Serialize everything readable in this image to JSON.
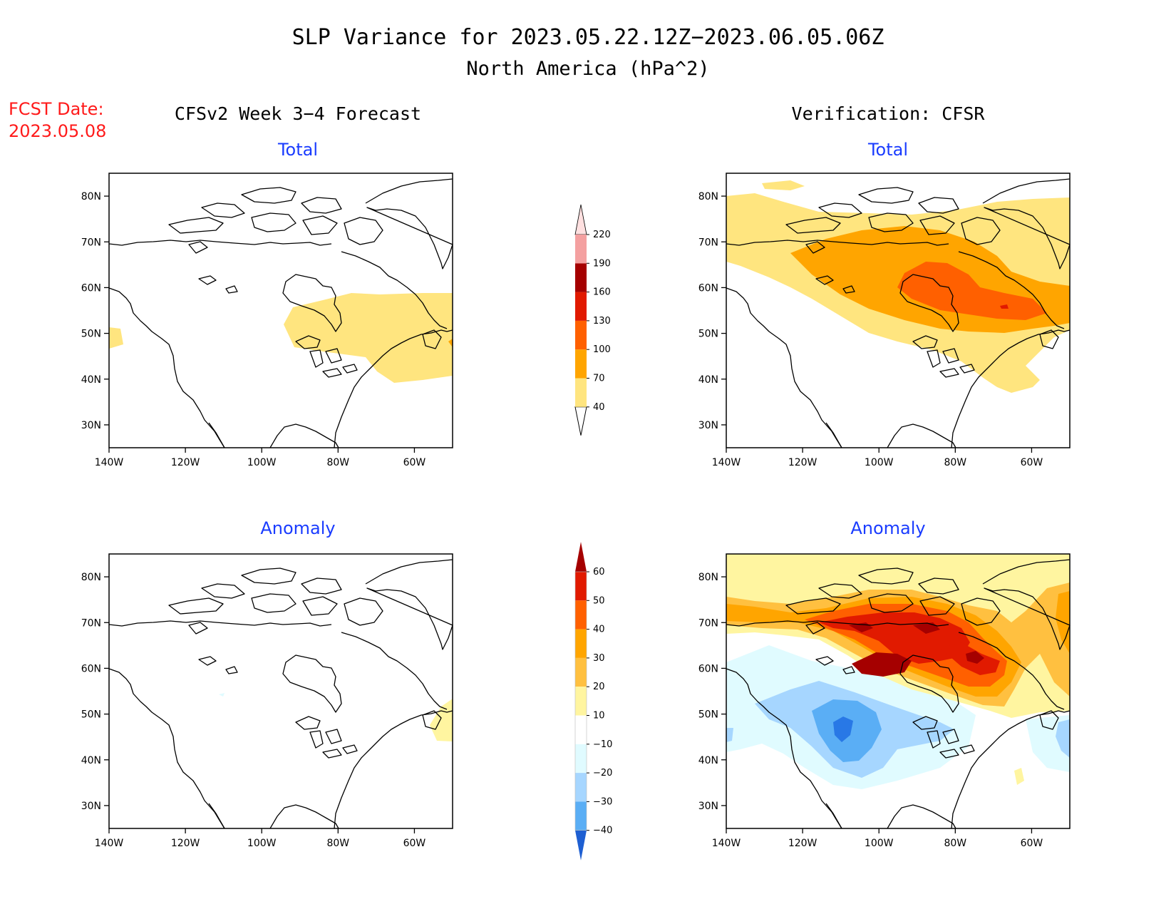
{
  "header": {
    "title": "SLP Variance for 2023.05.22.12Z−2023.06.05.06Z",
    "subtitle": "North America (hPa^2)",
    "fcst_label": "FCST Date:",
    "fcst_date": "2023.05.08",
    "left_column": "CFSv2 Week 3−4 Forecast",
    "right_column": "Verification: CFSR"
  },
  "panels": {
    "total_label": "Total",
    "anomaly_label": "Anomaly"
  },
  "axes": {
    "lat_ticks": [
      "80N",
      "70N",
      "60N",
      "50N",
      "40N",
      "30N"
    ],
    "lon_ticks": [
      "140W",
      "120W",
      "100W",
      "80W",
      "60W"
    ],
    "lat_range": [
      25,
      85
    ],
    "lon_range": [
      -140,
      -50
    ]
  },
  "colorbars": {
    "total": {
      "levels": [
        "40",
        "70",
        "100",
        "130",
        "160",
        "190",
        "220"
      ],
      "colors": [
        "#ffe57f",
        "#ffa500",
        "#ff6000",
        "#e11a00",
        "#a50000",
        "#f4a0a0",
        "#ffe0e0"
      ]
    },
    "anomaly": {
      "levels": [
        "60",
        "50",
        "40",
        "30",
        "20",
        "10",
        "−10",
        "−20",
        "−30",
        "−40"
      ],
      "colors": [
        "#a50000",
        "#e11a00",
        "#ff6000",
        "#ffa500",
        "#ffc040",
        "#fff5a0",
        "#ffffff",
        "#e0fbff",
        "#a6d6ff",
        "#5aaef5",
        "#2878e6",
        "#1e5fd2"
      ]
    }
  }
}
